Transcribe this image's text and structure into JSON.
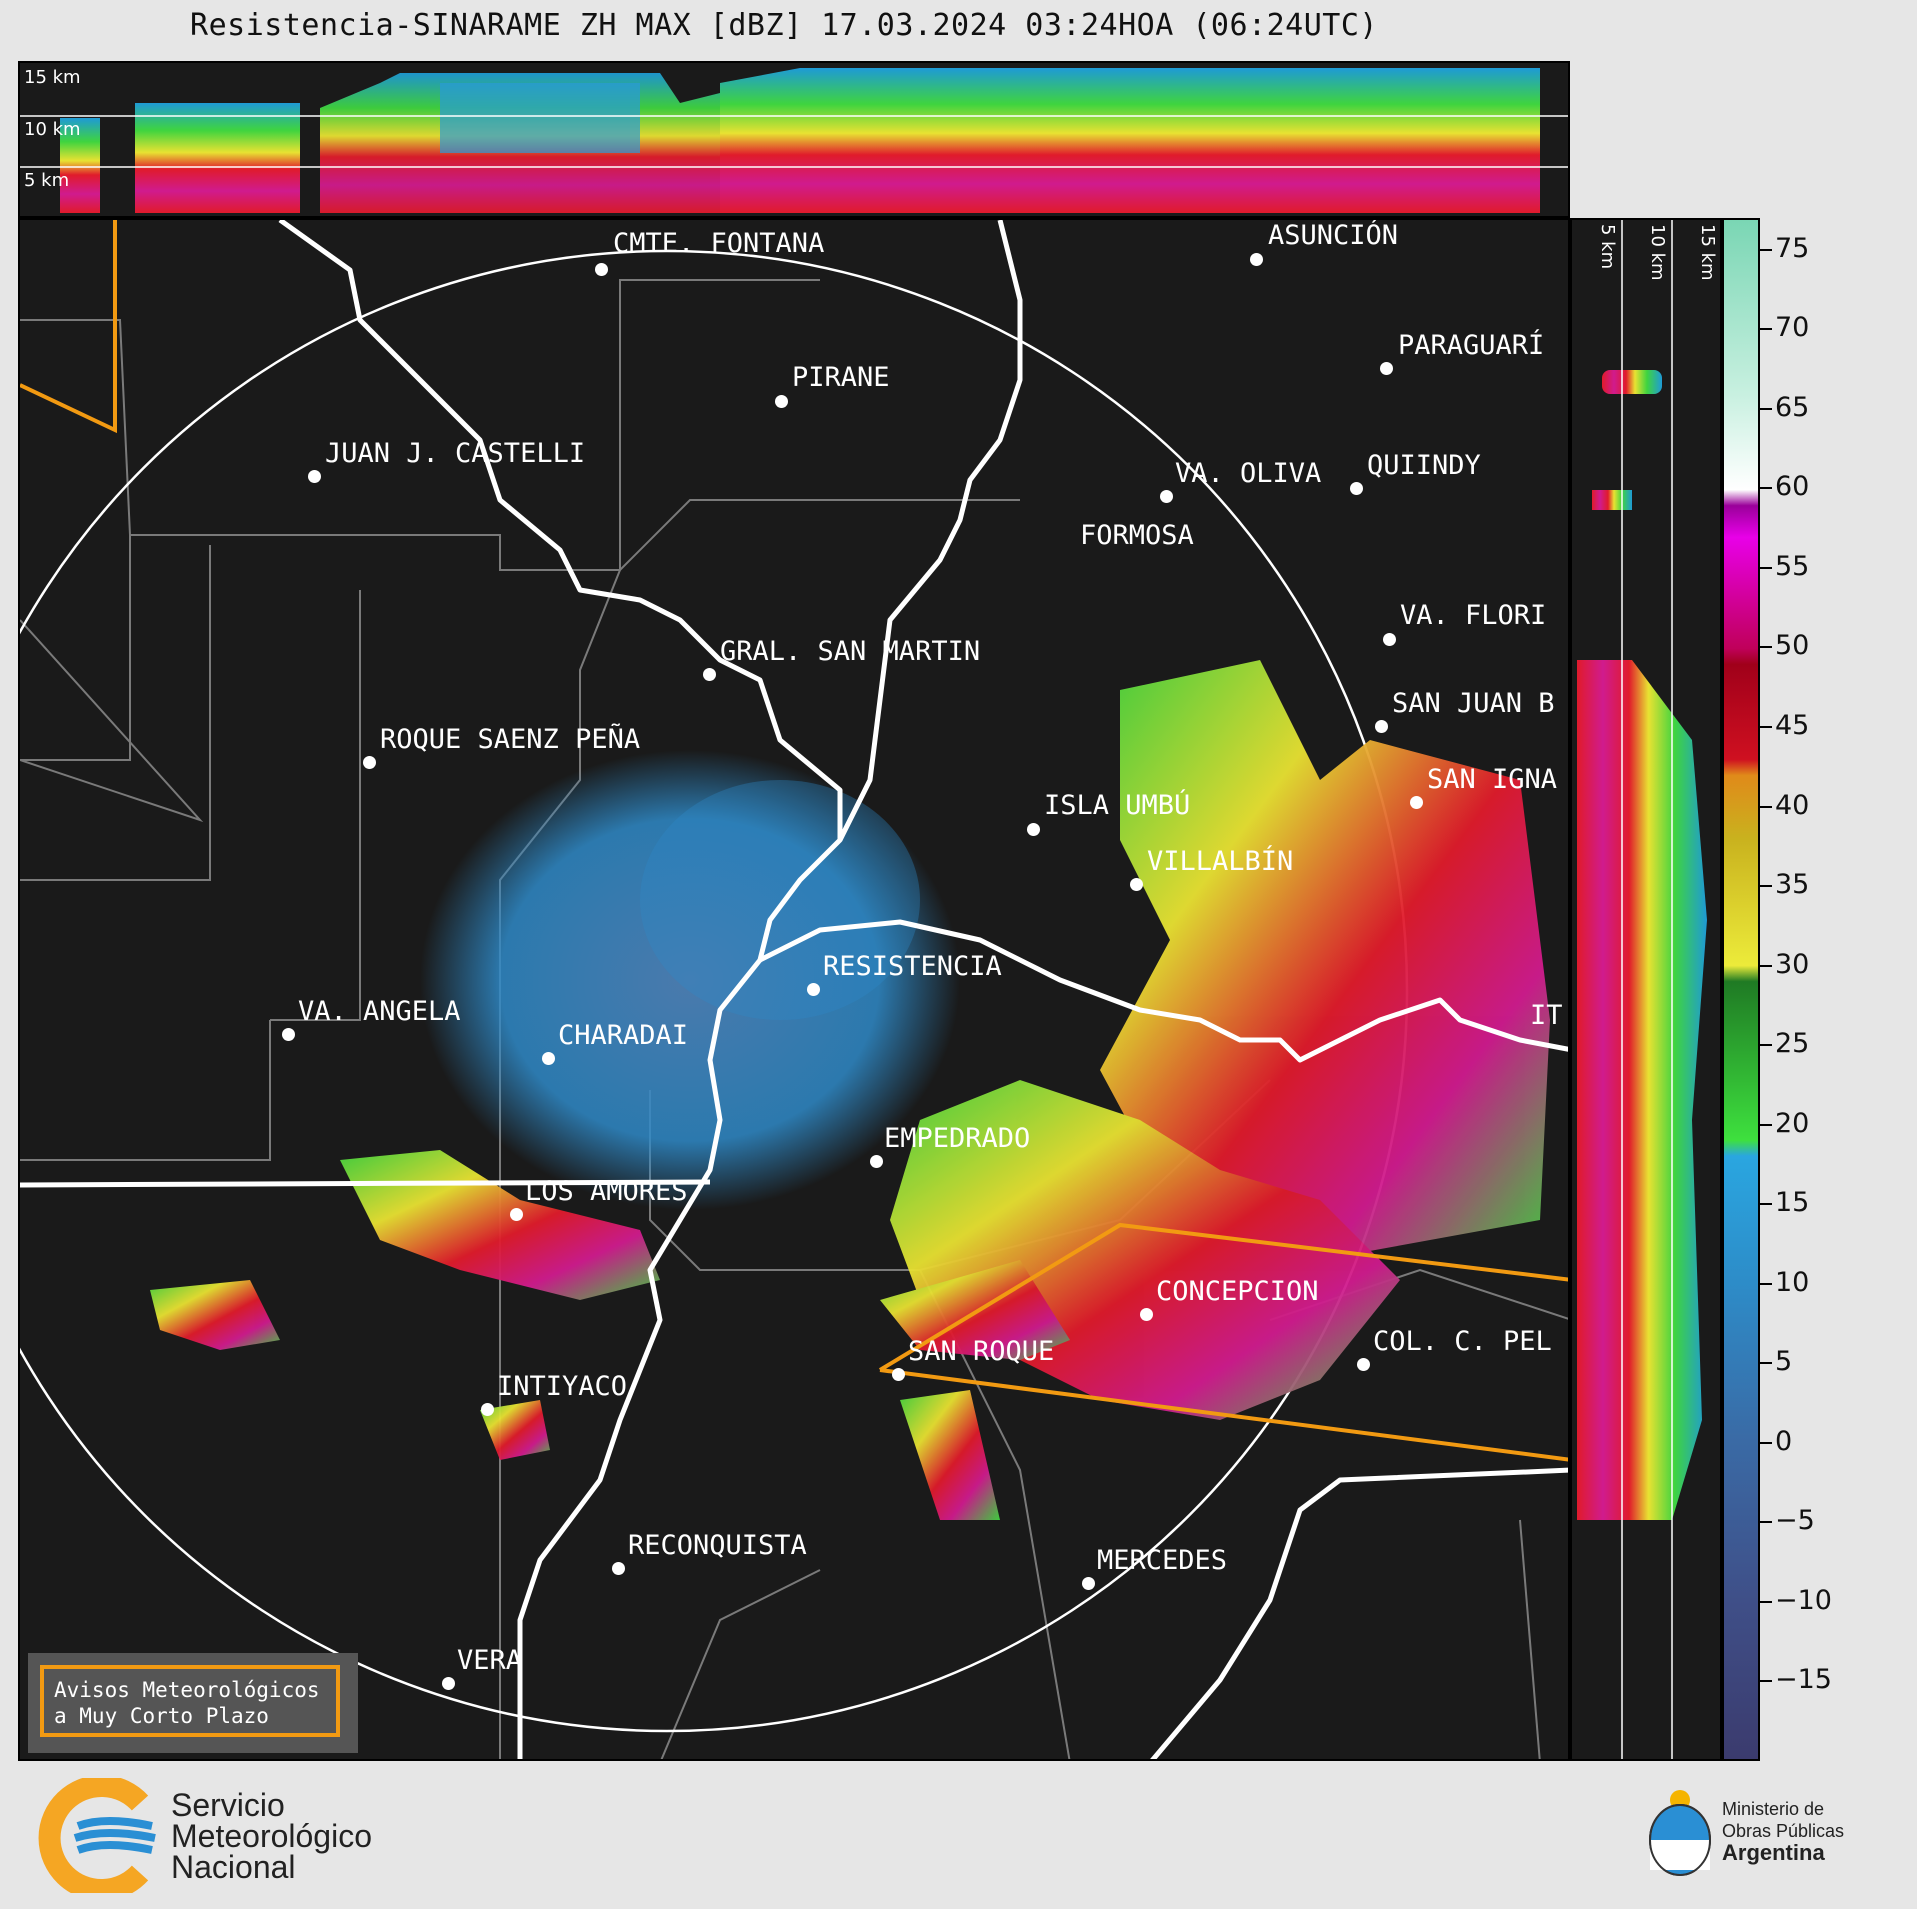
{
  "title": "Resistencia-SINARAME ZH MAX [dBZ] 17.03.2024 03:24HOA (06:24UTC)",
  "height_labels": [
    "15 km",
    "10 km",
    "5 km"
  ],
  "cities": [
    {
      "name": "CMTE. FONTANA"
    },
    {
      "name": "ASUNCIÓN"
    },
    {
      "name": "PARAGUARÍ"
    },
    {
      "name": "PIRANE"
    },
    {
      "name": "JUAN J. CASTELLI"
    },
    {
      "name": "VA. OLIVA"
    },
    {
      "name": "QUIINDY"
    },
    {
      "name": "FORMOSA"
    },
    {
      "name": "VA. FLORI"
    },
    {
      "name": "GRAL. SAN MARTIN"
    },
    {
      "name": "SAN JUAN B"
    },
    {
      "name": "ROQUE SAENZ PEÑA"
    },
    {
      "name": "SAN IGNA"
    },
    {
      "name": "ISLA UMBÚ"
    },
    {
      "name": "VILLALBÍN"
    },
    {
      "name": "RESISTENCIA"
    },
    {
      "name": "VA. ANGELA"
    },
    {
      "name": "CHARADAI"
    },
    {
      "name": "IT"
    },
    {
      "name": "EMPEDRADO"
    },
    {
      "name": "LOS AMORES"
    },
    {
      "name": "CONCEPCION"
    },
    {
      "name": "SAN ROQUE"
    },
    {
      "name": "COL. C. PEL"
    },
    {
      "name": "INTIYACO"
    },
    {
      "name": "RECONQUISTA"
    },
    {
      "name": "MERCEDES"
    },
    {
      "name": "VERA"
    }
  ],
  "colorbar": {
    "ticks": [
      "75",
      "70",
      "65",
      "60",
      "55",
      "50",
      "45",
      "40",
      "35",
      "30",
      "25",
      "20",
      "15",
      "10",
      "5",
      "0",
      "−5",
      "−10",
      "−15"
    ],
    "min": -20,
    "max": 77
  },
  "avisos": {
    "line1": "Avisos Meteorológicos",
    "line2": "a Muy Corto Plazo"
  },
  "logo_smn": {
    "line1": "Servicio",
    "line2": "Meteorológico",
    "line3": "Nacional"
  },
  "logo_ministerio": {
    "line1": "Ministerio de",
    "line2": "Obras Públicas",
    "line3": "Argentina"
  },
  "colors": {
    "panel": "#1a1a1a",
    "warning_polygon": "#f29a12",
    "border": "#ffffff",
    "province_lines": "#7a7a7a"
  }
}
